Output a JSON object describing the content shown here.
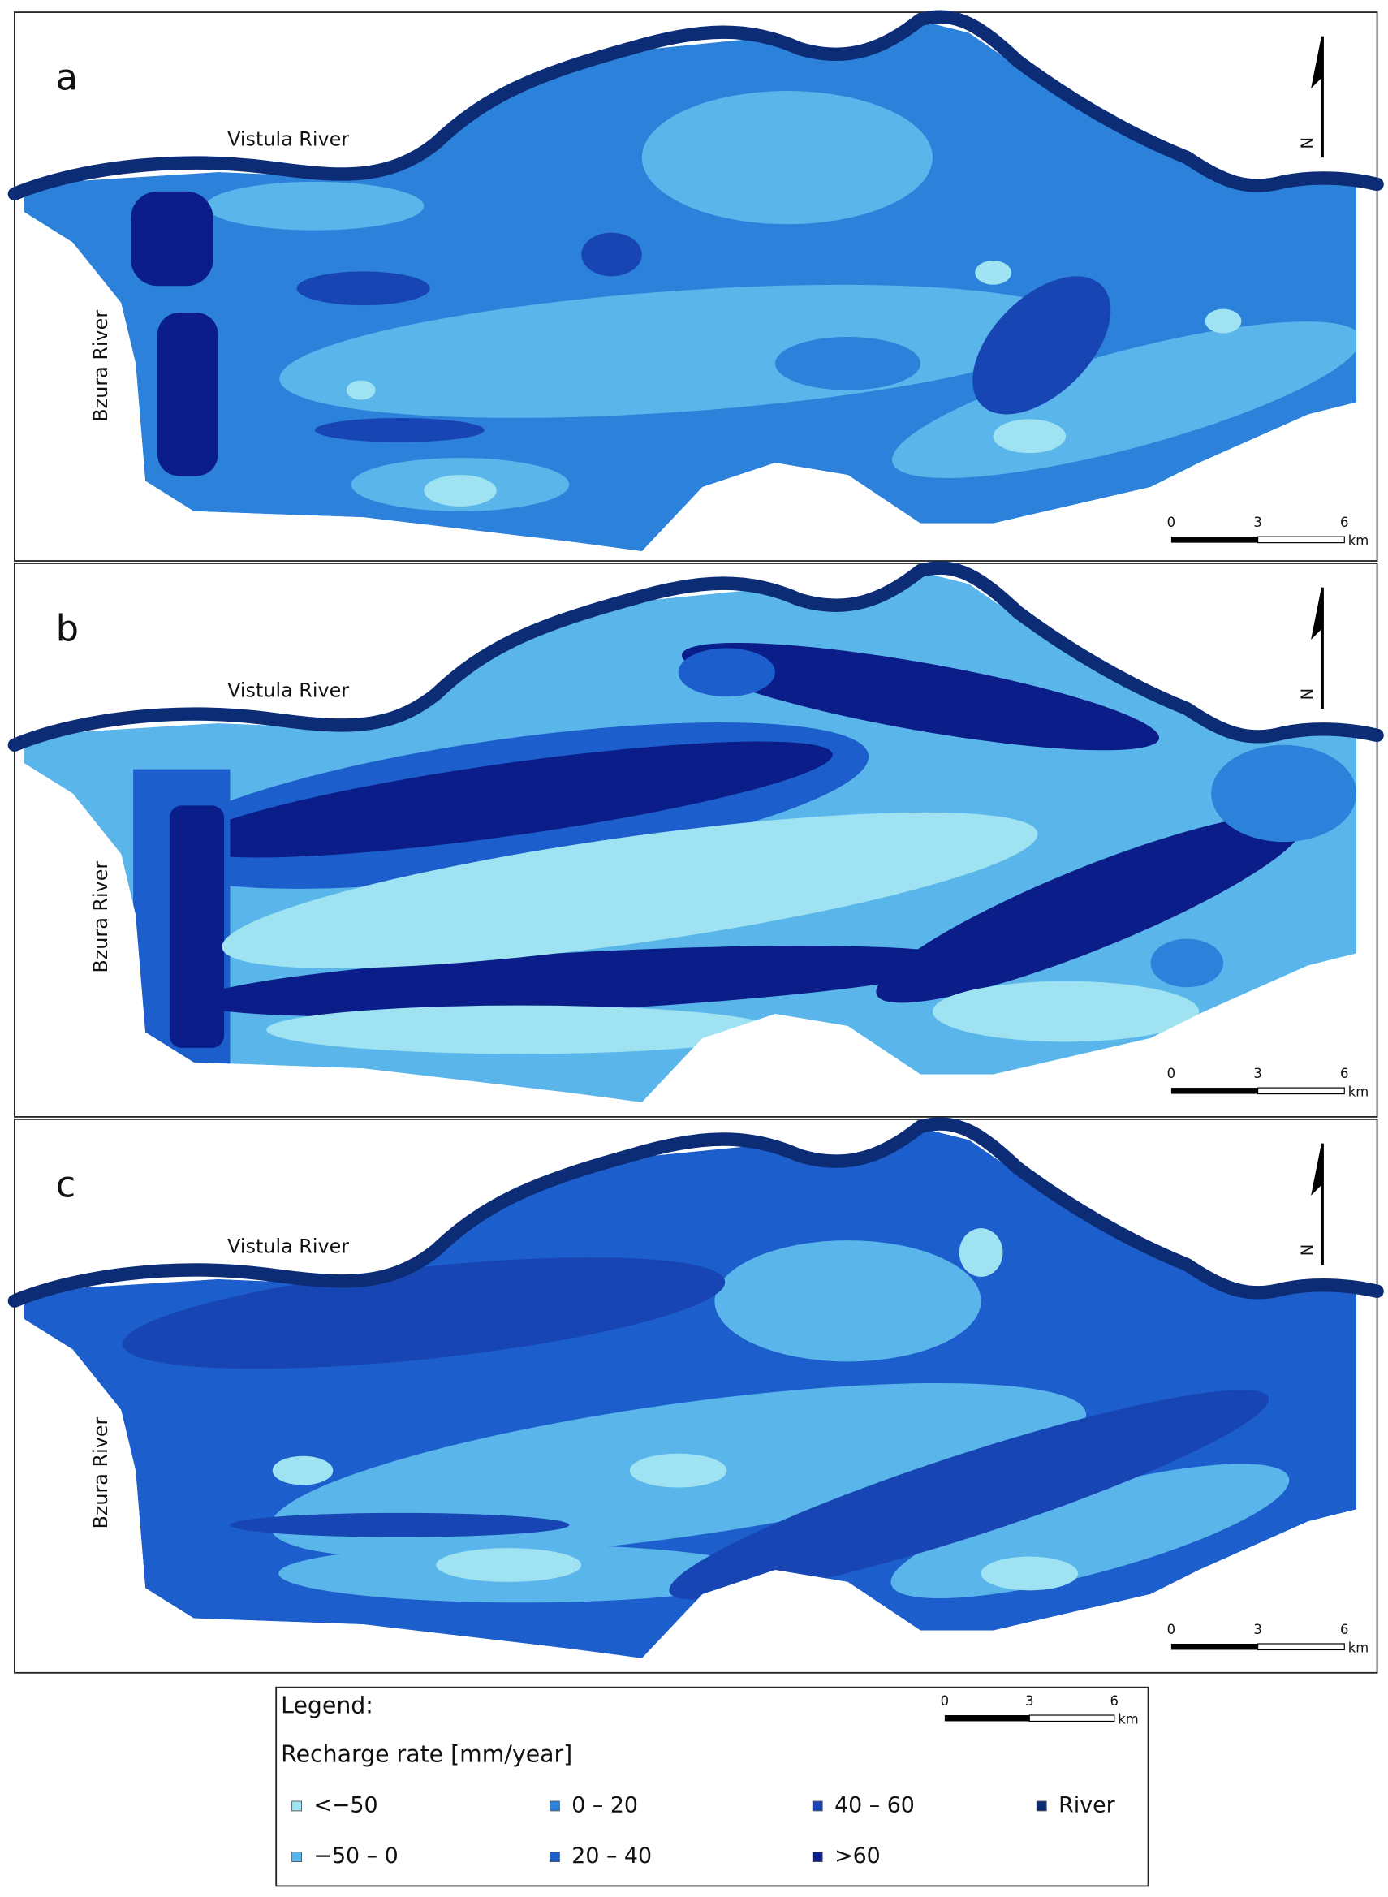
{
  "panels": [
    {
      "label": "a",
      "rivers": {
        "north": "Vistula River",
        "west": "Bzura River"
      },
      "north_arrow": "N",
      "scale_bar": {
        "ticks": [
          "0",
          "3",
          "6"
        ],
        "unit": "km"
      }
    },
    {
      "label": "b",
      "rivers": {
        "north": "Vistula River",
        "west": "Bzura River"
      },
      "north_arrow": "N",
      "scale_bar": {
        "ticks": [
          "0",
          "3",
          "6"
        ],
        "unit": "km"
      }
    },
    {
      "label": "c",
      "rivers": {
        "north": "Vistula River",
        "west": "Bzura River"
      },
      "north_arrow": "N",
      "scale_bar": {
        "ticks": [
          "0",
          "3",
          "6"
        ],
        "unit": "km"
      }
    }
  ],
  "legend": {
    "title": "Legend:",
    "subtitle": "Recharge rate [mm/year]",
    "scale_bar": {
      "ticks": [
        "0",
        "3",
        "6"
      ],
      "unit": "km"
    },
    "items": [
      {
        "label": "<−50",
        "color": "#9fe3f2"
      },
      {
        "label": "−50 – 0",
        "color": "#5ab5ea"
      },
      {
        "label": "0 – 20",
        "color": "#2c82da"
      },
      {
        "label": "20 – 40",
        "color": "#1c5ecc"
      },
      {
        "label": "40 – 60",
        "color": "#1746b4"
      },
      {
        "label": ">60",
        "color": "#0a1d88"
      },
      {
        "label": "River",
        "color": "#0c2c76"
      }
    ]
  }
}
